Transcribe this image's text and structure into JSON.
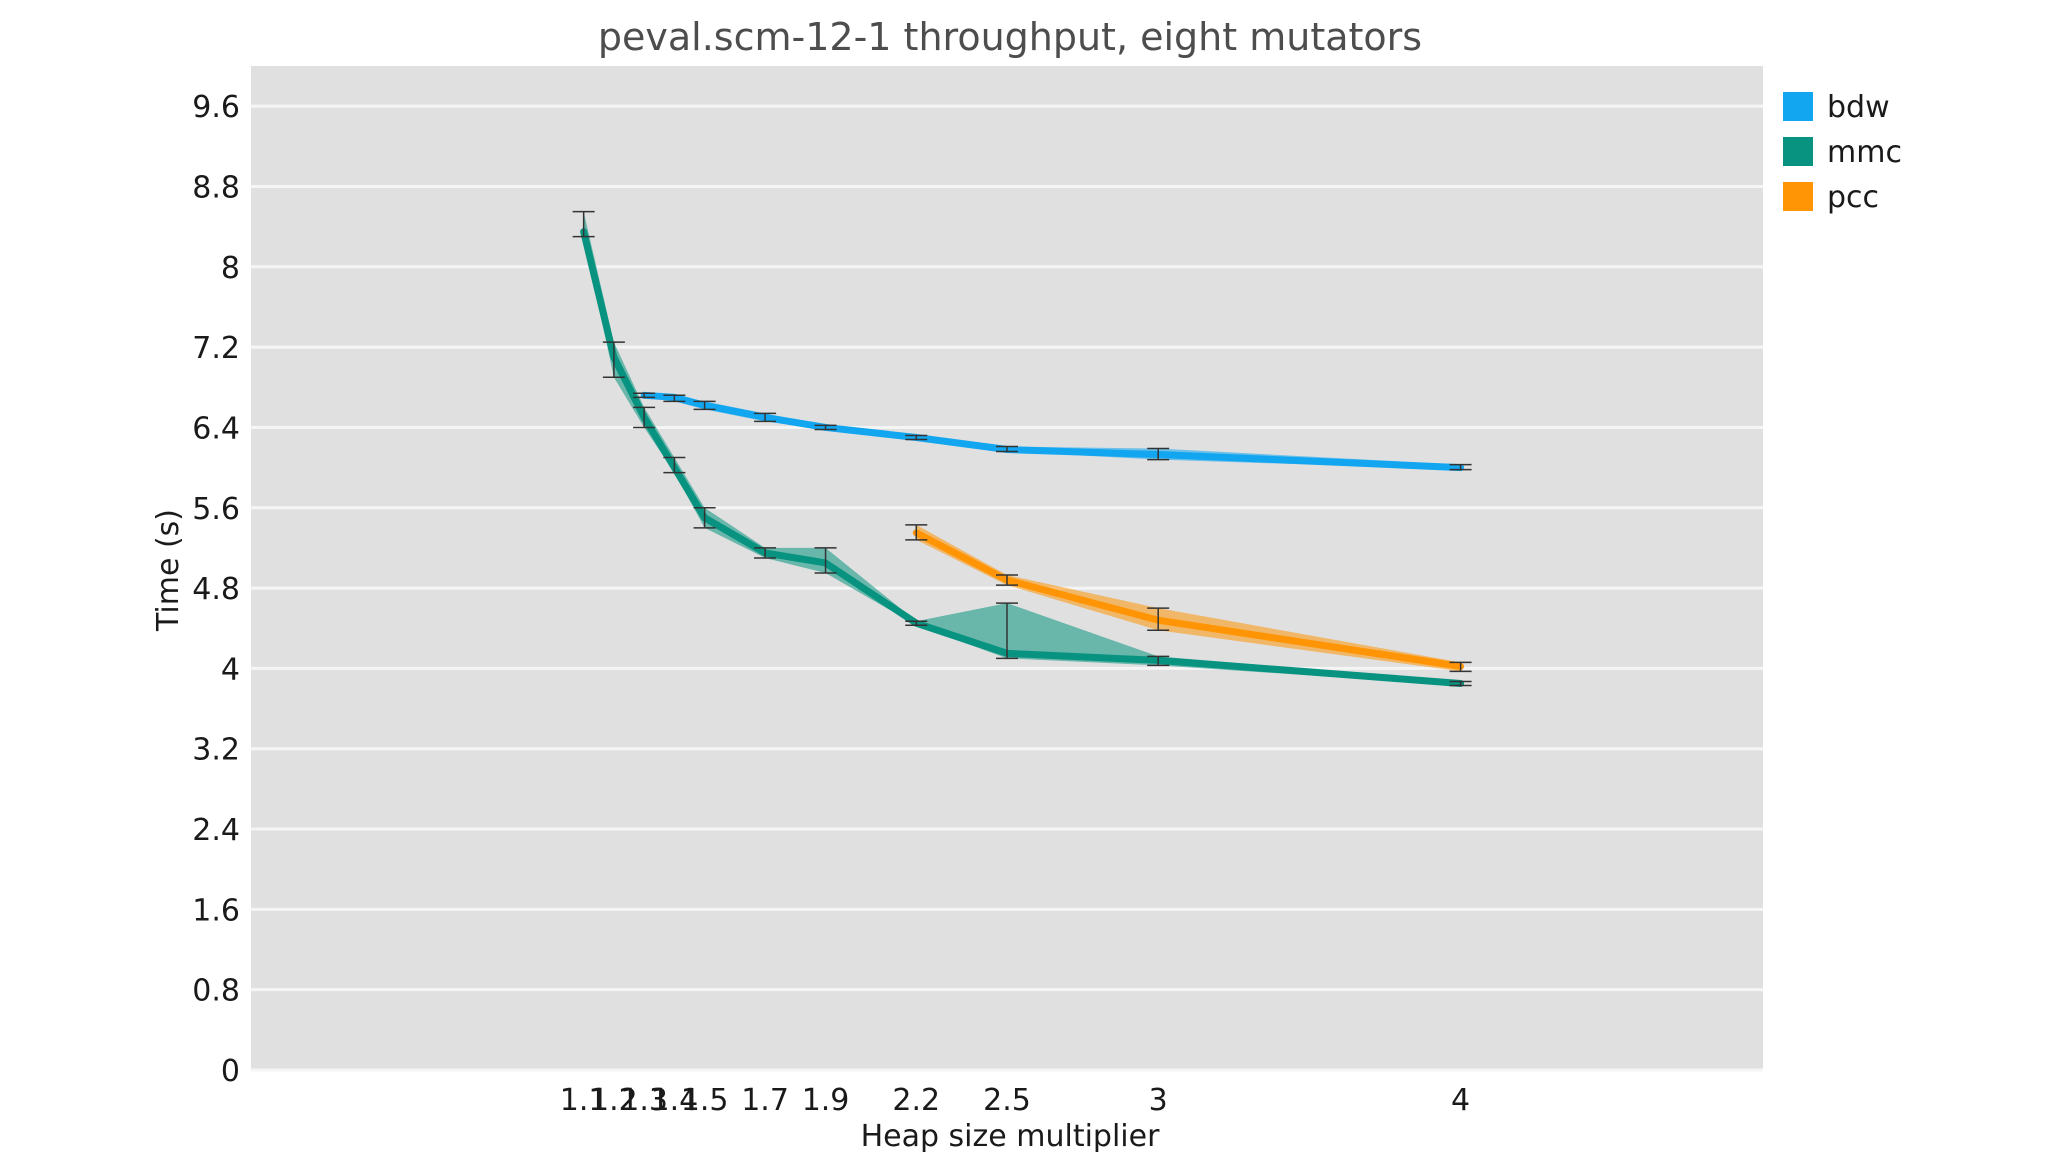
{
  "chart_data": {
    "type": "line",
    "title": "peval.scm-12-1 throughput, eight mutators",
    "xlabel": "Heap size multiplier",
    "ylabel": "Time (s)",
    "xlim": [
      0,
      5
    ],
    "ylim": [
      0,
      10
    ],
    "yticks": [
      0,
      0.8,
      1.6,
      2.4,
      3.2,
      4,
      4.8,
      5.6,
      6.4,
      7.2,
      8,
      8.8,
      9.6
    ],
    "ytick_labels": [
      "0",
      "0.8",
      "1.6",
      "2.4",
      "3.2",
      "4",
      "4.8",
      "5.6",
      "6.4",
      "7.2",
      "8",
      "8.8",
      "9.6"
    ],
    "xticks": [
      1.1,
      1.2,
      1.3,
      1.4,
      1.5,
      1.7,
      1.9,
      2.2,
      2.5,
      3,
      4
    ],
    "xtick_labels": [
      "1.1",
      "1.2",
      "1.3",
      "1.4",
      "1.5",
      "1.7",
      "1.9",
      "2.2",
      "2.5",
      "3",
      "4"
    ],
    "grid": true,
    "legend_position": "right",
    "colors": {
      "background": "#e0e0e0",
      "grid": "#f5f5f5",
      "errorbar": "#333333"
    },
    "series": [
      {
        "name": "bdw",
        "color": "#12a6f0",
        "x": [
          1.3,
          1.4,
          1.5,
          1.7,
          1.9,
          2.2,
          2.5,
          3,
          4
        ],
        "y": [
          6.72,
          6.7,
          6.62,
          6.5,
          6.4,
          6.3,
          6.18,
          6.13,
          6.0
        ],
        "lo": [
          6.7,
          6.66,
          6.58,
          6.46,
          6.38,
          6.28,
          6.16,
          6.08,
          5.98
        ],
        "hi": [
          6.74,
          6.72,
          6.66,
          6.54,
          6.42,
          6.32,
          6.21,
          6.19,
          6.03
        ]
      },
      {
        "name": "mmc",
        "color": "#079380",
        "x": [
          1.1,
          1.2,
          1.3,
          1.4,
          1.5,
          1.7,
          1.9,
          2.2,
          2.5,
          3,
          4
        ],
        "y": [
          8.35,
          7.1,
          6.5,
          6.0,
          5.5,
          5.15,
          5.05,
          4.45,
          4.15,
          4.08,
          3.85
        ],
        "lo": [
          8.3,
          6.9,
          6.4,
          5.95,
          5.4,
          5.1,
          4.95,
          4.43,
          4.1,
          4.03,
          3.83
        ],
        "hi": [
          8.55,
          7.25,
          6.6,
          6.1,
          5.6,
          5.2,
          5.2,
          4.47,
          4.65,
          4.12,
          3.87
        ]
      },
      {
        "name": "pcc",
        "color": "#ff9505",
        "x": [
          2.2,
          2.5,
          3,
          4
        ],
        "y": [
          5.35,
          4.88,
          4.48,
          4.02
        ],
        "lo": [
          5.28,
          4.83,
          4.38,
          3.97
        ],
        "hi": [
          5.43,
          4.93,
          4.6,
          4.06
        ]
      }
    ]
  }
}
